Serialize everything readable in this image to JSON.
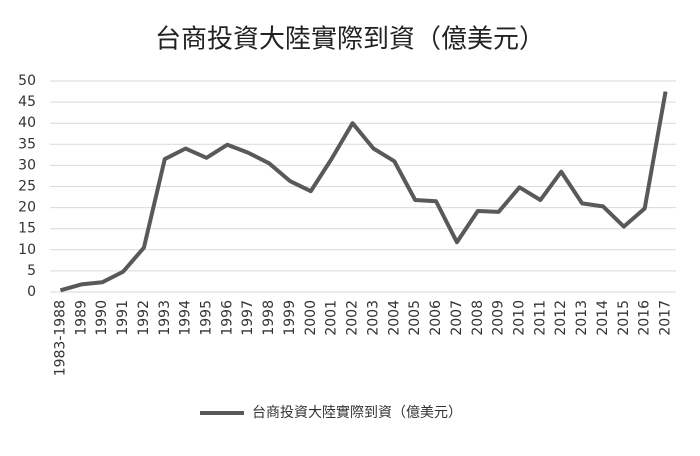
{
  "chart_data": {
    "type": "line",
    "title": "台商投資大陸實際到資（億美元）",
    "categories": [
      "1983-1988",
      "1989",
      "1990",
      "1991",
      "1992",
      "1993",
      "1994",
      "1995",
      "1996",
      "1997",
      "1998",
      "1999",
      "2000",
      "2001",
      "2002",
      "2003",
      "2004",
      "2005",
      "2006",
      "2007",
      "2008",
      "2009",
      "2010",
      "2011",
      "2012",
      "2013",
      "2014",
      "2015",
      "2016",
      "2017"
    ],
    "series": [
      {
        "name": "台商投資大陸實際到資（億美元）",
        "color": "#595959",
        "values": [
          0.4,
          1.8,
          2.3,
          4.8,
          10.5,
          31.5,
          34,
          31.8,
          34.9,
          33,
          30.5,
          26.3,
          23.9,
          31.6,
          40,
          34,
          31,
          21.8,
          21.5,
          11.8,
          19.2,
          19,
          24.8,
          21.8,
          28.5,
          21,
          20.3,
          15.5,
          19.8,
          47.5
        ]
      }
    ],
    "ylim": [
      0,
      50
    ],
    "yticks": [
      0,
      5,
      10,
      15,
      20,
      25,
      30,
      35,
      40,
      45,
      50
    ],
    "grid": true,
    "legend": "bottom"
  }
}
